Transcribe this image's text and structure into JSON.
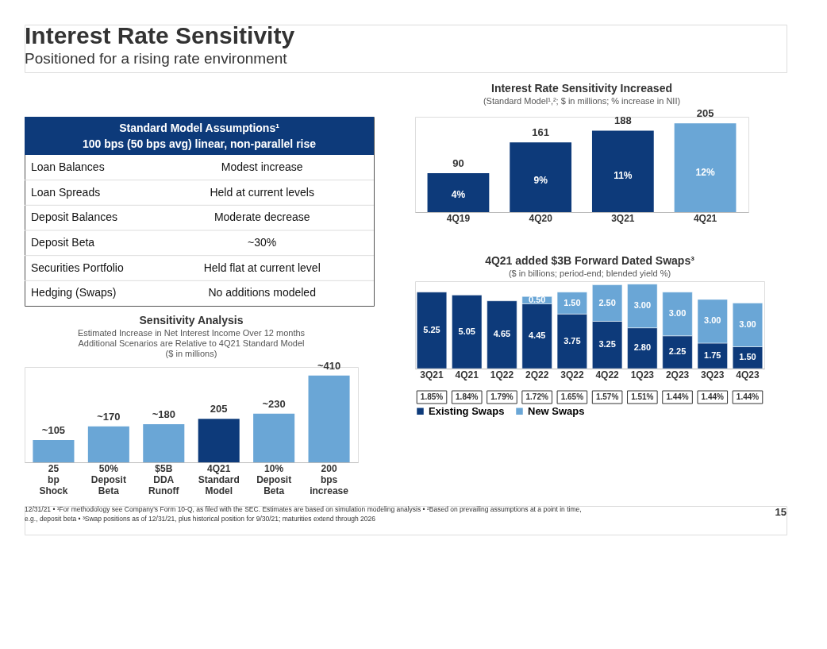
{
  "chart_data": [
    {
      "type": "other",
      "title": "Interest Rate Sensitivity",
      "subtitle": "Positioned for a rising rate environment",
      "annotations": [
        "12/31/21 • ¹For methodology see Company's Form 10-Q, as filed with the SEC. Estimates are based on simulation modeling analysis • ²Based on prevailing assumptions at a point in time,",
        "e.g., deposit beta • ³Swap positions as of 12/31/21, plus historical position for 9/30/21; maturities extend through 2026",
        "15"
      ]
    },
    {
      "type": "other",
      "title": "Standard Model Assumptions¹",
      "subtitle": "100 bps (50 bps avg)  linear, non-parallel rise",
      "annotations": [
        "Loan Balances",
        "Modest increase",
        "Loan Spreads",
        "Held at current levels",
        "Deposit Balances",
        "Moderate decrease",
        "Deposit Beta",
        "~30%",
        "Securities Portfolio",
        "Held flat at current level",
        "Hedging (Swaps)",
        "No additions modeled"
      ]
    },
    {
      "type": "bar",
      "title": "Interest Rate Sensitivity Increased",
      "subtitle": "(Standard Model¹,²; $ in millions; % increase in NII)",
      "categories": [
        "4Q19",
        "4Q20",
        "3Q21",
        "4Q21"
      ],
      "values": [
        90,
        161,
        188,
        205
      ],
      "colors": [
        "#0d3a7a",
        "#0d3a7a",
        "#0d3a7a",
        "#6aa6d6"
      ],
      "data_labels": true,
      "tick_labels": "x",
      "annotations": [
        "4%",
        "9%",
        "11%",
        "12%"
      ]
    },
    {
      "type": "bar",
      "title": "Sensitivity Analysis",
      "subtitle": "Estimated Increase in Net Interest Income Over 12 months\nAdditional Scenarios are Relative to 4Q21 Standard Model\n($ in millions)",
      "categories": [
        "25 bp Shock",
        "50% Deposit Beta",
        "$5B DDA Runoff",
        "4Q21 Standard Model",
        "10% Deposit Beta",
        "200 bps increase"
      ],
      "values": [
        105,
        170,
        180,
        205,
        230,
        410
      ],
      "value_labels": [
        "~105",
        "~170",
        "~180",
        "205",
        "~230",
        "~410"
      ],
      "colors": [
        "#6aa6d6",
        "#6aa6d6",
        "#6aa6d6",
        "#0d3a7a",
        "#6aa6d6",
        "#6aa6d6"
      ],
      "tick_labels": "x"
    },
    {
      "type": "bar",
      "stacked": true,
      "title": "4Q21 added $3B Forward Dated Swaps³",
      "subtitle": "($ in billions; period-end; blended yield %)",
      "categories": [
        "3Q21",
        "4Q21",
        "1Q22",
        "2Q22",
        "3Q22",
        "4Q22",
        "1Q23",
        "2Q23",
        "3Q23",
        "4Q23"
      ],
      "series": [
        {
          "name": "Existing Swaps",
          "color": "#0d3a7a",
          "values": [
            5.25,
            5.05,
            4.65,
            4.45,
            3.75,
            3.25,
            2.8,
            2.25,
            1.75,
            1.5
          ],
          "value_labels": [
            "5.25",
            "5.05",
            "4.65",
            "4.45",
            "3.75",
            "3.25",
            "2.80",
            "2.25",
            "1.75",
            "1.50"
          ]
        },
        {
          "name": "New Swaps",
          "color": "#6aa6d6",
          "values": [
            null,
            null,
            null,
            0.5,
            1.5,
            2.5,
            3.0,
            3.0,
            3.0,
            3.0
          ],
          "value_labels": [
            null,
            null,
            null,
            "0.50",
            "1.50",
            "2.50",
            "3.00",
            "3.00",
            "3.00",
            "3.00"
          ]
        }
      ],
      "legend": "bottom",
      "tick_labels": "x",
      "annotations": [
        "1.85%",
        "1.84%",
        "1.79%",
        "1.72%",
        "1.65%",
        "1.57%",
        "1.51%",
        "1.44%",
        "1.44%",
        "1.44%"
      ]
    }
  ]
}
